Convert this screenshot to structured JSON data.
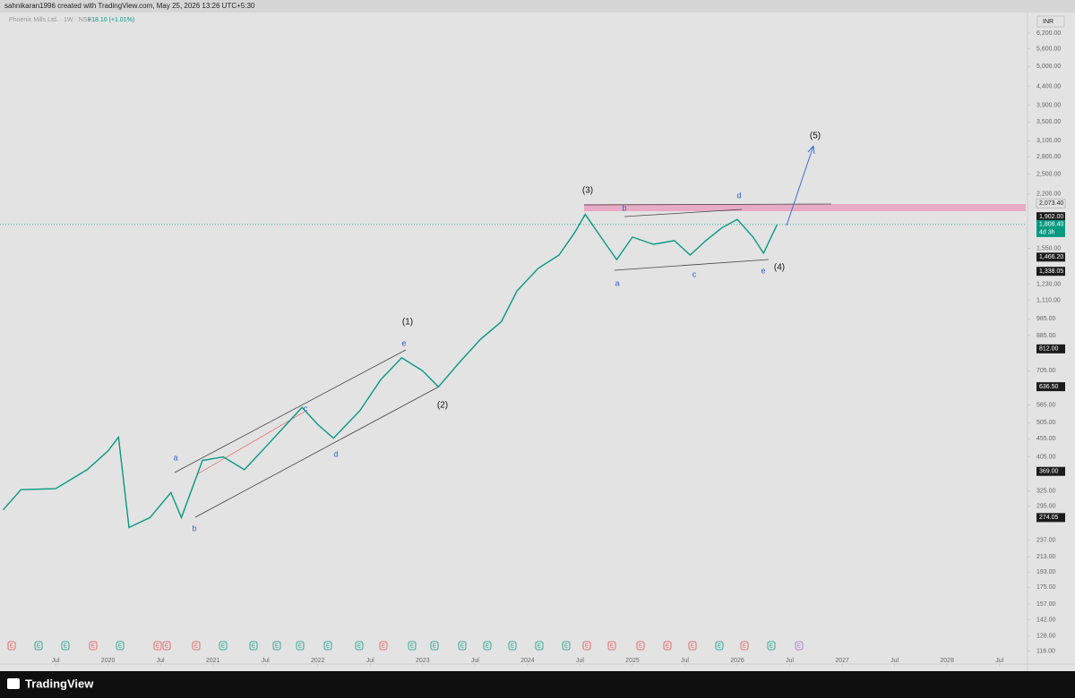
{
  "chart_data": {
    "type": "line",
    "header": "sahnikaran1996 created with TradingView.com, May 25, 2026 13:26 UTC+5:30",
    "title": "Phoenix Mills Ltd. · 1W · NSE",
    "change": "+18.10 (+1.01%)",
    "currency": "INR",
    "footer": "TradingView",
    "color": "#089981",
    "log_scale": true,
    "grid": false,
    "x": [
      2019.0,
      2019.17,
      2019.5,
      2019.8,
      2020.0,
      2020.1,
      2020.2,
      2020.4,
      2020.6,
      2020.7,
      2020.9,
      2021.1,
      2021.3,
      2021.5,
      2021.7,
      2021.85,
      2022.0,
      2022.15,
      2022.4,
      2022.6,
      2022.8,
      2023.0,
      2023.15,
      2023.35,
      2023.55,
      2023.75,
      2023.9,
      2024.1,
      2024.3,
      2024.45,
      2024.55,
      2024.7,
      2024.85,
      2025.0,
      2025.2,
      2025.4,
      2025.55,
      2025.7,
      2025.85,
      2026.0,
      2026.15,
      2026.25,
      2026.38
    ],
    "values": [
      288,
      328,
      330,
      373,
      421,
      460,
      257,
      274,
      322,
      274,
      396,
      405,
      373,
      431,
      499,
      557,
      499,
      457,
      545,
      666,
      767,
      705,
      636,
      744,
      863,
      967,
      1180,
      1363,
      1486,
      1719,
      1930,
      1668,
      1443,
      1668,
      1592,
      1630,
      1486,
      1630,
      1768,
      1870,
      1668,
      1504,
      1808
    ],
    "xlim": [
      2018.97,
      2028.75
    ],
    "xticks": [
      {
        "value": 2019.5,
        "label": "Jul"
      },
      2020,
      {
        "value": 2020.5,
        "label": "Jul"
      },
      2021,
      {
        "value": 2021.5,
        "label": "Jul"
      },
      2022,
      {
        "value": 2022.5,
        "label": "Jul"
      },
      2023,
      {
        "value": 2023.5,
        "label": "Jul"
      },
      2024,
      {
        "value": 2024.5,
        "label": "Jul"
      },
      2025,
      {
        "value": 2025.5,
        "label": "Jul"
      },
      2026,
      {
        "value": 2026.5,
        "label": "Jul"
      },
      2027,
      {
        "value": 2027.5,
        "label": "Jul"
      },
      2028,
      {
        "value": 2028.5,
        "label": "Jul"
      }
    ],
    "ylim": [
      108,
      6840
    ],
    "yticks": [
      {
        "value": 6200,
        "label": "6,200.00"
      },
      {
        "value": 5600,
        "label": "5,600.00"
      },
      {
        "value": 5000,
        "label": "5,000.00"
      },
      {
        "value": 4400,
        "label": "4,400.00"
      },
      {
        "value": 3900,
        "label": "3,900.00"
      },
      {
        "value": 3500,
        "label": "3,500.00"
      },
      {
        "value": 3100,
        "label": "3,100.00"
      },
      {
        "value": 2800,
        "label": "2,800.00"
      },
      {
        "value": 2500,
        "label": "2,500.00"
      },
      {
        "value": 2200,
        "label": "2,200.00"
      },
      {
        "value": 1550,
        "label": "1,550.00"
      },
      {
        "value": 1230,
        "label": "1,230.00"
      },
      {
        "value": 1110,
        "label": "1,110.00"
      },
      {
        "value": 985,
        "label": "985.00"
      },
      {
        "value": 885,
        "label": "885.00"
      },
      {
        "value": 705,
        "label": "705.00"
      },
      {
        "value": 565,
        "label": "565.00"
      },
      {
        "value": 505,
        "label": "505.00"
      },
      {
        "value": 455,
        "label": "455.00"
      },
      {
        "value": 405,
        "label": "405.00"
      },
      {
        "value": 325,
        "label": "325.00"
      },
      {
        "value": 295,
        "label": "295.00"
      },
      {
        "value": 237,
        "label": "237.00"
      },
      {
        "value": 213,
        "label": "213.00"
      },
      {
        "value": 193,
        "label": "193.00"
      },
      {
        "value": 175,
        "label": "175.00"
      },
      {
        "value": 157,
        "label": "157.00"
      },
      {
        "value": 142,
        "label": "142.00"
      },
      {
        "value": 128,
        "label": "128.00"
      },
      {
        "value": 116,
        "label": "116.00"
      }
    ],
    "price_labels": [
      {
        "value": 2073.4,
        "label": "2,073.40"
      },
      {
        "value": 1902,
        "label": "1,902.00"
      },
      {
        "value": 1808.4,
        "label": "1,808.40"
      },
      {
        "value": 1466.2,
        "label": "1,466.20"
      },
      {
        "value": 1338.05,
        "label": "1,338.05"
      },
      {
        "value": 812,
        "label": "812.00"
      },
      {
        "value": 636.5,
        "label": "636.50"
      },
      {
        "value": 369,
        "label": "369.00"
      },
      {
        "value": 274.05,
        "label": "274.05"
      }
    ],
    "countdown": "4d 3h",
    "annotations": [
      "(1)",
      "(2)",
      "(3)",
      "(4)",
      "(5)",
      "a",
      "b",
      "c",
      "d",
      "e",
      "b",
      "a",
      "c",
      "d",
      "e"
    ],
    "event_label": "E"
  }
}
